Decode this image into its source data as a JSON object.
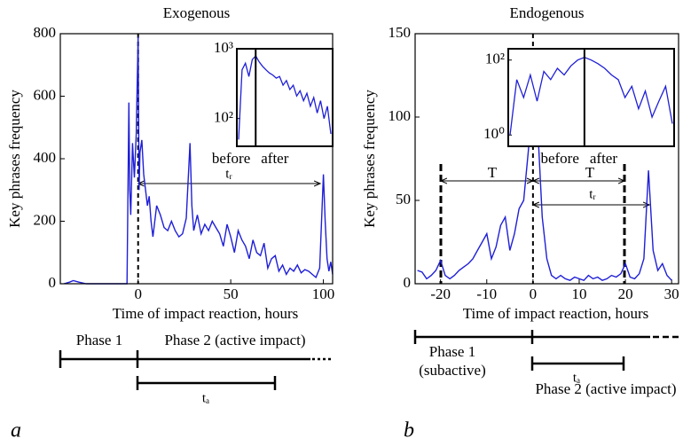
{
  "chart_data": [
    {
      "type": "line",
      "title": "Exogenous",
      "xlabel": "Time of impact reaction, hours",
      "ylabel": "Key phrases frequency",
      "color": "#1f1fd6",
      "x": [
        -40,
        -37,
        -35,
        -32,
        -28,
        -20,
        -10,
        -6,
        -5,
        -4.5,
        -4,
        -3,
        -2,
        -1,
        0,
        0.5,
        1,
        2,
        3,
        4,
        5,
        6,
        7,
        8,
        10,
        12,
        14,
        16,
        18,
        20,
        22,
        24,
        26,
        28,
        29,
        30,
        32,
        34,
        36,
        38,
        40,
        42,
        44,
        46,
        48,
        50,
        52,
        54,
        56,
        58,
        60,
        62,
        64,
        66,
        68,
        70,
        72,
        74,
        76,
        78,
        80,
        82,
        84,
        86,
        88,
        90,
        92,
        94,
        96,
        98,
        100,
        101,
        102,
        103,
        104,
        105
      ],
      "values": [
        0,
        5,
        10,
        5,
        0,
        0,
        0,
        0,
        580,
        300,
        220,
        450,
        340,
        480,
        790,
        300,
        420,
        460,
        350,
        300,
        250,
        280,
        200,
        150,
        250,
        220,
        180,
        170,
        200,
        170,
        150,
        160,
        210,
        450,
        250,
        170,
        220,
        160,
        190,
        170,
        200,
        180,
        160,
        120,
        190,
        150,
        100,
        170,
        140,
        120,
        80,
        140,
        100,
        90,
        130,
        50,
        80,
        90,
        40,
        60,
        30,
        50,
        40,
        60,
        35,
        45,
        40,
        30,
        20,
        50,
        350,
        200,
        80,
        40,
        70,
        30
      ],
      "xlim": [
        -42,
        105
      ],
      "ylim": [
        0,
        800
      ],
      "xticks": [
        0,
        50,
        100
      ],
      "yticks": [
        0,
        200,
        400,
        600,
        800
      ],
      "inset": {
        "log_scale": true,
        "ylim": [
          40,
          1000
        ],
        "yticks": [
          {
            "value": 100,
            "label": "10²"
          },
          {
            "value": 1000,
            "label": "10³"
          }
        ],
        "values": [
          50,
          500,
          620,
          400,
          700,
          790,
          650,
          560,
          500,
          450,
          420,
          380,
          400,
          300,
          350,
          260,
          300,
          210,
          250,
          180,
          230,
          150,
          200,
          120,
          180,
          100,
          150,
          60
        ],
        "labels": [
          "before",
          "after"
        ]
      },
      "annotations": [
        "tᵣ"
      ],
      "phases": [
        "Phase 1",
        "Phase 2 (active impact)",
        "tₐ"
      ],
      "panel_label": "a"
    },
    {
      "type": "line",
      "title": "Endogenous",
      "xlabel": "Time of impact reaction, hours",
      "ylabel": "Key phrases frequency",
      "color": "#1f1fd6",
      "x": [
        -25,
        -24,
        -23,
        -22,
        -21,
        -20,
        -19,
        -18,
        -17,
        -16,
        -15,
        -14,
        -13,
        -12,
        -11,
        -10,
        -9,
        -8,
        -7,
        -6,
        -5,
        -4,
        -3,
        -2,
        -1,
        0,
        1,
        2,
        3,
        4,
        5,
        6,
        7,
        8,
        9,
        10,
        11,
        12,
        13,
        14,
        15,
        16,
        17,
        18,
        19,
        20,
        21,
        22,
        23,
        24,
        25,
        26,
        27,
        28,
        29,
        30
      ],
      "values": [
        8,
        7,
        3,
        5,
        8,
        14,
        5,
        3,
        5,
        8,
        10,
        12,
        15,
        20,
        25,
        30,
        15,
        22,
        35,
        40,
        20,
        30,
        45,
        50,
        80,
        118,
        95,
        40,
        15,
        5,
        3,
        5,
        3,
        2,
        4,
        3,
        2,
        5,
        3,
        4,
        2,
        3,
        5,
        4,
        6,
        12,
        4,
        3,
        6,
        15,
        68,
        20,
        8,
        12,
        5,
        2
      ],
      "xlim": [
        -25.5,
        31.5
      ],
      "ylim": [
        0,
        150
      ],
      "xticks": [
        -20,
        -10,
        0,
        10,
        20,
        30
      ],
      "yticks": [
        0,
        50,
        100,
        150
      ],
      "inset": {
        "log_scale": true,
        "ylim": [
          0.5,
          200
        ],
        "yticks": [
          {
            "value": 1,
            "label": "10⁰"
          },
          {
            "value": 100,
            "label": "10²"
          }
        ],
        "values": [
          1,
          30,
          10,
          40,
          8,
          50,
          30,
          60,
          40,
          70,
          100,
          118,
          100,
          80,
          60,
          40,
          30,
          10,
          20,
          5,
          15,
          3,
          8,
          20,
          2
        ],
        "labels": [
          "before",
          "after"
        ]
      },
      "annotations": [
        "T",
        "T",
        "tᵣ"
      ],
      "phases": [
        "Phase 1",
        "(subactive)",
        "tₐ",
        "Phase 2 (active impact)"
      ],
      "panel_label": "b"
    }
  ]
}
